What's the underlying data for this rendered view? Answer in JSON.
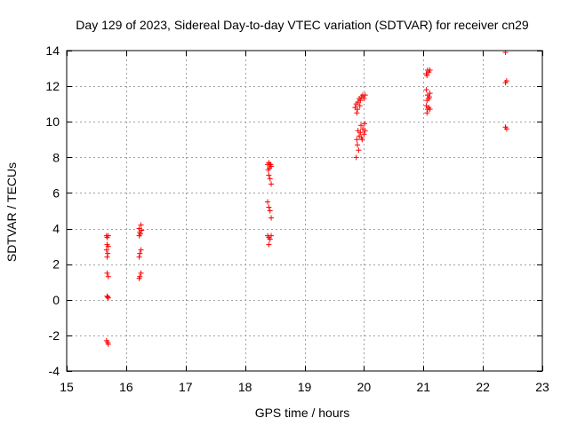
{
  "chart_data": {
    "type": "scatter",
    "title": "Day 129 of 2023, Sidereal Day-to-day VTEC variation (SDTVAR) for receiver cn29",
    "xlabel": "GPS time / hours",
    "ylabel": "SDTVAR / TECUs",
    "xlim": [
      15,
      23
    ],
    "ylim": [
      -4,
      14
    ],
    "xticks": [
      15,
      16,
      17,
      18,
      19,
      20,
      21,
      22,
      23
    ],
    "yticks": [
      -4,
      -2,
      0,
      2,
      4,
      6,
      8,
      10,
      12,
      14
    ],
    "grid": true,
    "marker": "+",
    "color": "#ff0000",
    "series": [
      {
        "name": "SDTVAR",
        "points": [
          [
            15.67,
            3.6
          ],
          [
            15.68,
            3.5
          ],
          [
            15.7,
            3.6
          ],
          [
            15.68,
            3.1
          ],
          [
            15.7,
            3.0
          ],
          [
            15.67,
            2.8
          ],
          [
            15.69,
            2.6
          ],
          [
            15.68,
            2.4
          ],
          [
            15.68,
            1.5
          ],
          [
            15.7,
            1.3
          ],
          [
            15.68,
            0.2
          ],
          [
            15.7,
            0.1
          ],
          [
            15.69,
            0.15
          ],
          [
            15.67,
            -2.3
          ],
          [
            15.69,
            -2.4
          ],
          [
            15.7,
            -2.5
          ],
          [
            16.22,
            4.0
          ],
          [
            16.25,
            4.2
          ],
          [
            16.23,
            3.8
          ],
          [
            16.22,
            3.6
          ],
          [
            16.24,
            3.7
          ],
          [
            16.26,
            3.9
          ],
          [
            16.25,
            2.8
          ],
          [
            16.23,
            2.6
          ],
          [
            16.22,
            2.4
          ],
          [
            16.25,
            1.5
          ],
          [
            16.23,
            1.3
          ],
          [
            16.22,
            1.2
          ],
          [
            18.38,
            7.6
          ],
          [
            18.4,
            7.7
          ],
          [
            18.42,
            7.6
          ],
          [
            18.44,
            7.5
          ],
          [
            18.39,
            7.3
          ],
          [
            18.41,
            7.4
          ],
          [
            18.43,
            7.6
          ],
          [
            18.4,
            7.0
          ],
          [
            18.42,
            6.8
          ],
          [
            18.44,
            6.5
          ],
          [
            18.38,
            5.5
          ],
          [
            18.4,
            5.2
          ],
          [
            18.42,
            5.0
          ],
          [
            18.44,
            4.6
          ],
          [
            18.38,
            3.6
          ],
          [
            18.4,
            3.5
          ],
          [
            18.42,
            3.4
          ],
          [
            18.44,
            3.6
          ],
          [
            18.4,
            3.1
          ],
          [
            19.85,
            10.8
          ],
          [
            19.87,
            11.0
          ],
          [
            19.89,
            10.7
          ],
          [
            19.9,
            11.1
          ],
          [
            19.92,
            11.3
          ],
          [
            19.94,
            11.2
          ],
          [
            19.96,
            11.4
          ],
          [
            19.98,
            11.5
          ],
          [
            20.0,
            11.3
          ],
          [
            20.02,
            11.5
          ],
          [
            19.88,
            10.5
          ],
          [
            19.93,
            10.9
          ],
          [
            19.9,
            9.5
          ],
          [
            19.92,
            9.2
          ],
          [
            19.94,
            9.4
          ],
          [
            19.96,
            9.1
          ],
          [
            19.98,
            9.6
          ],
          [
            20.0,
            9.3
          ],
          [
            20.02,
            9.5
          ],
          [
            19.88,
            9.0
          ],
          [
            19.95,
            9.8
          ],
          [
            20.01,
            9.9
          ],
          [
            19.97,
            9.0
          ],
          [
            19.89,
            8.7
          ],
          [
            19.91,
            8.4
          ],
          [
            19.87,
            8.0
          ],
          [
            21.05,
            12.7
          ],
          [
            21.07,
            12.9
          ],
          [
            21.09,
            12.8
          ],
          [
            21.11,
            12.9
          ],
          [
            21.06,
            12.6
          ],
          [
            21.05,
            11.8
          ],
          [
            21.07,
            11.5
          ],
          [
            21.09,
            11.3
          ],
          [
            21.11,
            11.6
          ],
          [
            21.06,
            11.2
          ],
          [
            21.1,
            11.4
          ],
          [
            21.05,
            10.9
          ],
          [
            21.07,
            10.7
          ],
          [
            21.09,
            10.8
          ],
          [
            21.11,
            10.7
          ],
          [
            21.06,
            10.5
          ],
          [
            22.38,
            13.9
          ],
          [
            22.38,
            12.2
          ],
          [
            22.4,
            12.3
          ],
          [
            22.38,
            9.7
          ],
          [
            22.4,
            9.6
          ]
        ]
      }
    ]
  }
}
